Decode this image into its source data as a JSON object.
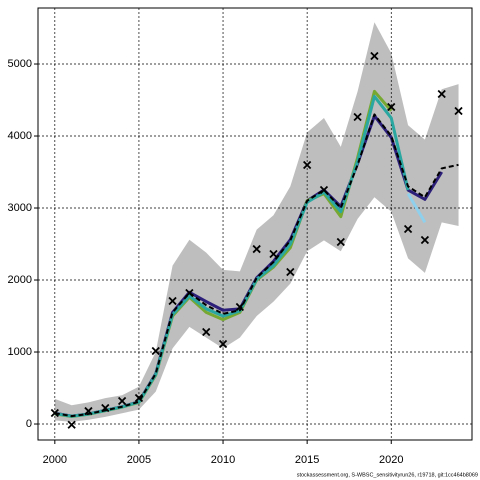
{
  "chart_data": {
    "type": "line",
    "footer": "stockassessment.org, S-WBSC_sensitivityrun26, r19718, git:1cc464b8069",
    "x": [
      2000,
      2001,
      2002,
      2003,
      2004,
      2005,
      2006,
      2007,
      2008,
      2009,
      2010,
      2011,
      2012,
      2013,
      2014,
      2015,
      2016,
      2017,
      2018,
      2019,
      2020,
      2021,
      2022,
      2023,
      2024
    ],
    "band": {
      "color": "#bebebe",
      "upper": [
        350,
        260,
        300,
        360,
        400,
        520,
        1000,
        2200,
        2560,
        2380,
        2140,
        2120,
        2700,
        2900,
        3300,
        4050,
        4250,
        3850,
        4620,
        5580,
        5150,
        4150,
        3950,
        4650,
        4720
      ],
      "lower": [
        50,
        30,
        60,
        100,
        150,
        200,
        450,
        1050,
        1350,
        1200,
        1050,
        1200,
        1500,
        1700,
        1950,
        2400,
        2550,
        2400,
        2850,
        3150,
        2950,
        2300,
        2100,
        2800,
        2750
      ]
    },
    "series": [
      {
        "color": "#2c1f7a",
        "values": [
          150,
          110,
          140,
          190,
          240,
          310,
          700,
          1550,
          1830,
          1700,
          1580,
          1600,
          2030,
          2260,
          2560,
          3100,
          3250,
          3020,
          3620,
          4280,
          3980,
          3250,
          3120,
          3500,
          null
        ]
      },
      {
        "color": "#77a832",
        "values": [
          140,
          105,
          135,
          185,
          235,
          300,
          680,
          1500,
          1760,
          1550,
          1450,
          1550,
          2000,
          2180,
          2450,
          3100,
          3200,
          2880,
          3700,
          4620,
          4350,
          null,
          null,
          null,
          null
        ]
      },
      {
        "color": "#2aa7a0",
        "values": [
          145,
          108,
          138,
          188,
          238,
          305,
          690,
          1520,
          1780,
          1600,
          1500,
          1570,
          2010,
          2200,
          2500,
          3080,
          3220,
          2950,
          3650,
          4550,
          4250,
          3250,
          null,
          null,
          null
        ]
      },
      {
        "color": "#8fd0ec",
        "values": [
          null,
          null,
          null,
          null,
          null,
          null,
          null,
          null,
          null,
          null,
          null,
          null,
          null,
          null,
          null,
          null,
          null,
          null,
          null,
          null,
          null,
          3200,
          2800,
          null,
          null
        ]
      },
      {
        "color": "#000000",
        "dashed": true,
        "values": [
          150,
          110,
          140,
          190,
          240,
          310,
          700,
          1550,
          1820,
          1650,
          1530,
          1580,
          2030,
          2250,
          2550,
          3100,
          3250,
          3000,
          3600,
          4300,
          4000,
          3300,
          3150,
          3550,
          3600
        ]
      }
    ],
    "observations": [
      153,
      -10,
      180,
      222,
      320,
      361,
      1014,
      1708,
      1820,
      1278,
      1111,
      1625,
      2430,
      2361,
      2111,
      3597,
      3250,
      2528,
      4264,
      5111,
      4403,
      2708,
      2556,
      4583,
      4347
    ],
    "xlim": [
      1999,
      2024.8
    ],
    "ylim": [
      -222,
      5778
    ],
    "xticks": [
      2000,
      2005,
      2010,
      2015,
      2020
    ],
    "yticks": [
      0,
      1000,
      2000,
      3000,
      4000,
      5000
    ],
    "grid": true
  }
}
